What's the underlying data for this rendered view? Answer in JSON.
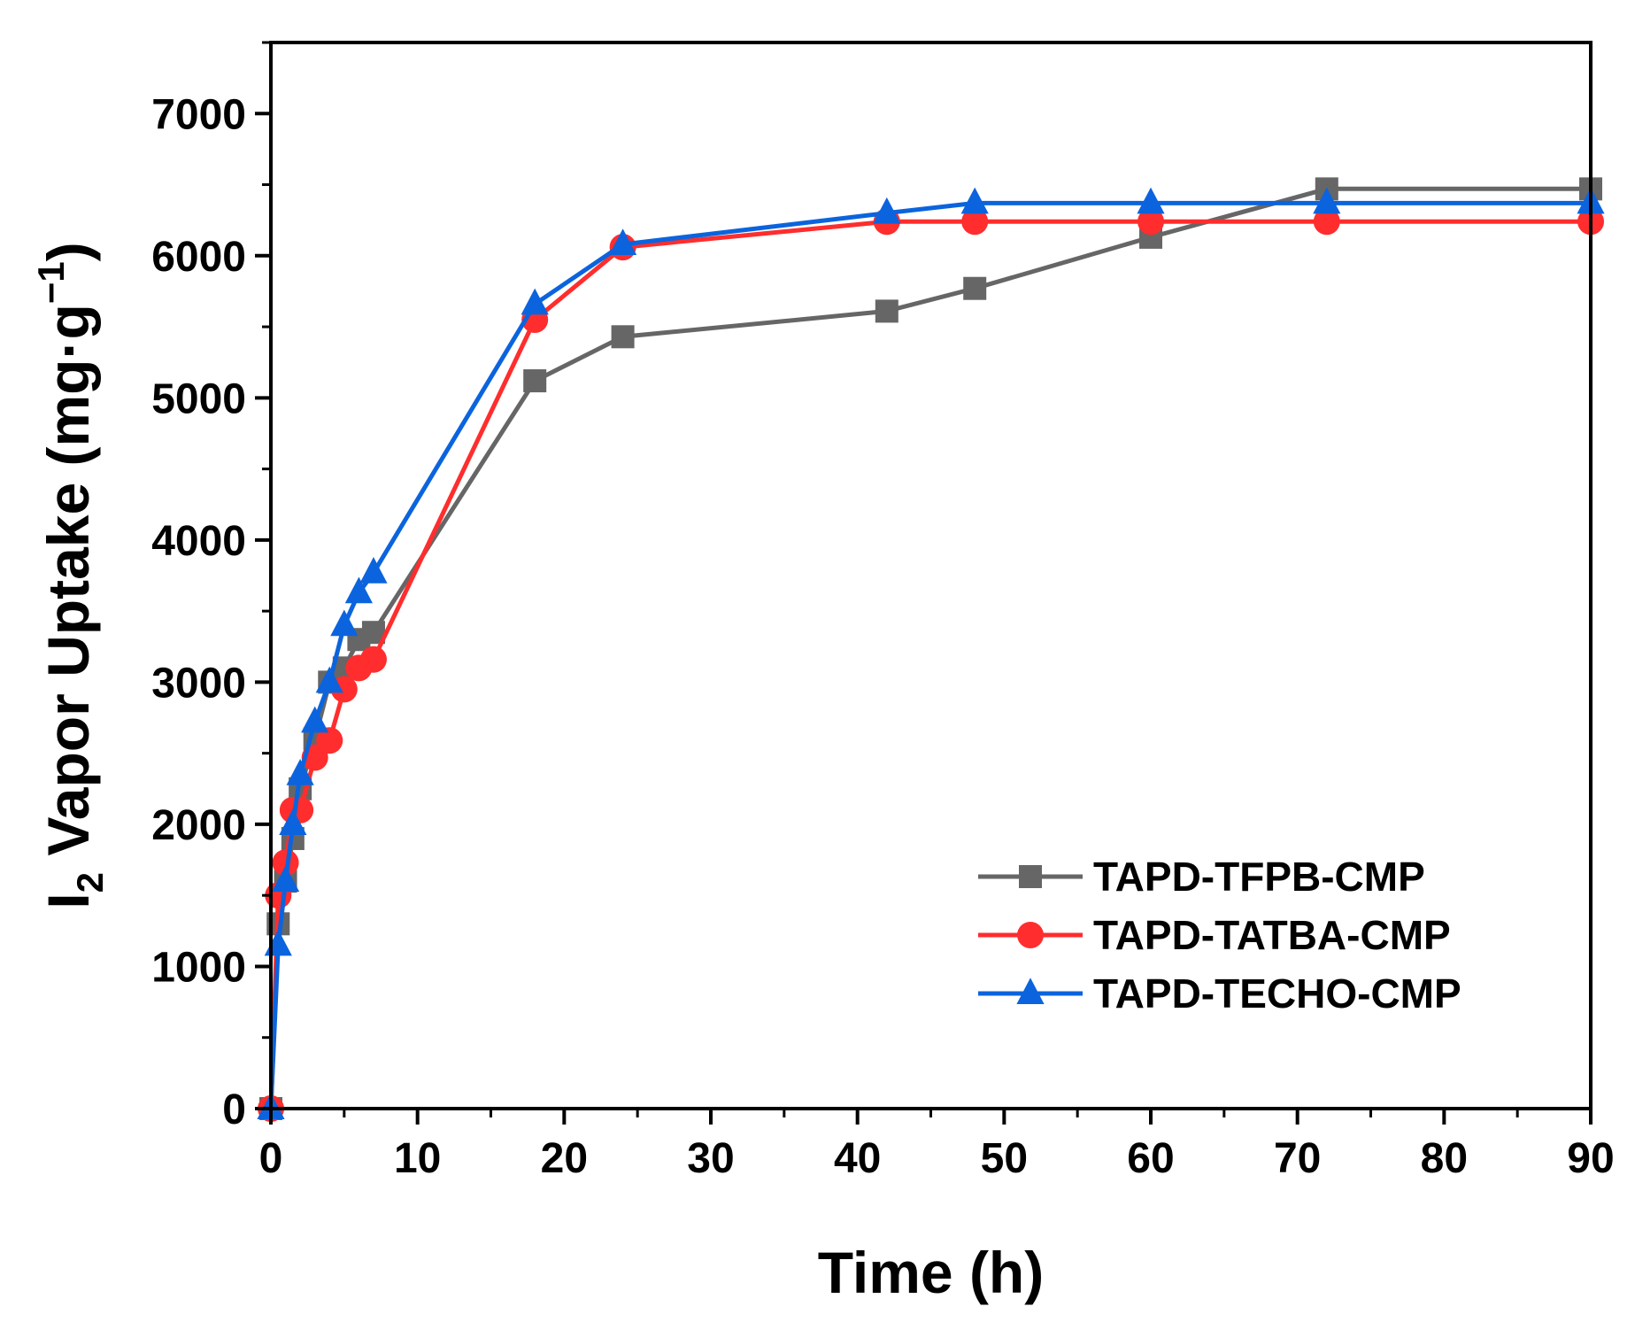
{
  "chart_data": {
    "type": "line",
    "title": "",
    "xlabel": "Time (h)",
    "ylabel": {
      "base": "I",
      "sub": "2",
      "main": " Vapor Uptake (mg·g",
      "sup": "−1",
      "close": ")"
    },
    "xlim": [
      0,
      90
    ],
    "ylim": [
      0,
      7500
    ],
    "xticks": [
      0,
      10,
      20,
      30,
      40,
      50,
      60,
      70,
      80,
      90
    ],
    "yticks": [
      0,
      1000,
      2000,
      3000,
      4000,
      5000,
      6000,
      7000
    ],
    "x_minor_step": 5,
    "y_minor_step": 500,
    "grid": false,
    "legend_position": "bottom-right",
    "series": [
      {
        "name": "TAPD-TFPB-CMP",
        "color": "#666666",
        "marker": "square",
        "x": [
          0,
          0.5,
          1,
          1.5,
          2,
          3,
          4,
          5,
          6,
          7,
          18,
          24,
          42,
          48,
          60,
          72,
          90
        ],
        "y": [
          0,
          1300,
          1600,
          1900,
          2250,
          2600,
          3000,
          3100,
          3300,
          3350,
          5120,
          5430,
          5610,
          5770,
          6130,
          6470,
          6470
        ]
      },
      {
        "name": "TAPD-TATBA-CMP",
        "color": "#ff2d2d",
        "marker": "circle",
        "x": [
          0,
          0.5,
          1,
          1.5,
          2,
          3,
          4,
          5,
          6,
          7,
          18,
          24,
          42,
          48,
          60,
          72,
          90
        ],
        "y": [
          0,
          1500,
          1730,
          2100,
          2100,
          2470,
          2590,
          2950,
          3100,
          3160,
          5550,
          6060,
          6240,
          6240,
          6240,
          6240,
          6240
        ]
      },
      {
        "name": "TAPD-TECHO-CMP",
        "color": "#0b64dd",
        "marker": "triangle",
        "x": [
          0,
          0.5,
          1,
          1.5,
          2,
          3,
          4,
          5,
          6,
          7,
          18,
          24,
          42,
          48,
          60,
          72,
          90
        ],
        "y": [
          0,
          1150,
          1600,
          2000,
          2350,
          2720,
          3000,
          3400,
          3630,
          3770,
          5660,
          6080,
          6300,
          6370,
          6370,
          6370,
          6370
        ]
      }
    ]
  }
}
